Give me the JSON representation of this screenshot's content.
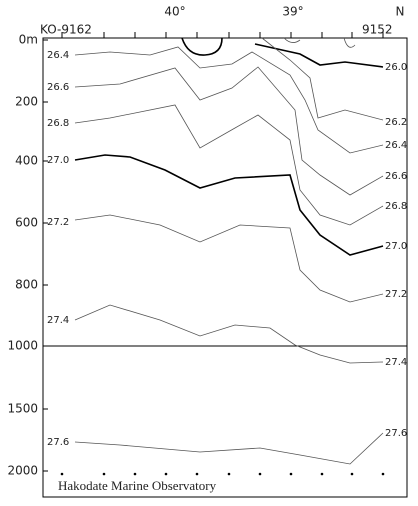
{
  "axis": {
    "depth_labels": [
      "0m",
      "200",
      "400",
      "600",
      "800",
      "1000",
      "1500",
      "2000"
    ],
    "latitude_labels": [
      "40°",
      "39°",
      "N"
    ]
  },
  "stations": {
    "first": "KO-9162",
    "last": "9152"
  },
  "contours": {
    "left": [
      "26.4",
      "26.6",
      "26.8",
      "27.0",
      "27.2",
      "27.4",
      "27.6"
    ],
    "right": [
      "26.0",
      "26.2",
      "26.4",
      "26.6",
      "26.8",
      "27.0",
      "27.2",
      "27.4",
      "27.6"
    ]
  },
  "credit": "Hakodate Marine Observatory"
}
